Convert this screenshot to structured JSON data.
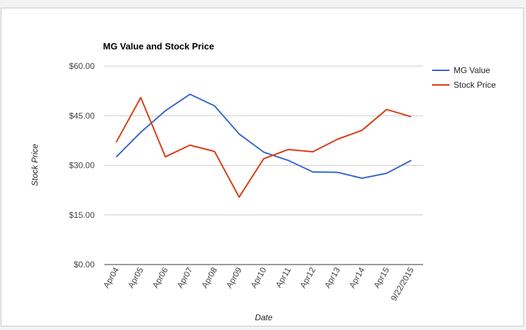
{
  "chart_data": {
    "type": "line",
    "title": "MG Value and Stock Price",
    "xlabel": "Date",
    "ylabel": "Stock Price",
    "categories": [
      "Apr04",
      "Apr05",
      "Apr06",
      "Apr07",
      "Apr08",
      "Apr09",
      "Apr10",
      "Apr11",
      "Apr12",
      "Apr13",
      "Apr14",
      "Apr15",
      "9/22/2015"
    ],
    "ylim": [
      0,
      60
    ],
    "yticks": [
      "$0.00",
      "$15.00",
      "$30.00",
      "$45.00",
      "$60.00"
    ],
    "ytick_values": [
      0,
      15,
      30,
      45,
      60
    ],
    "grid": true,
    "legend_position": "right",
    "series": [
      {
        "name": "MG Value",
        "color": "#3366cc",
        "values": [
          32.5,
          40.0,
          46.5,
          51.5,
          48.0,
          39.5,
          34.0,
          31.5,
          28.0,
          27.9,
          26.1,
          27.6,
          31.5
        ]
      },
      {
        "name": "Stock Price",
        "color": "#dc3912",
        "values": [
          37.0,
          50.5,
          32.6,
          36.1,
          34.2,
          20.4,
          32.0,
          34.8,
          34.1,
          37.9,
          40.6,
          46.9,
          44.7
        ]
      }
    ]
  }
}
